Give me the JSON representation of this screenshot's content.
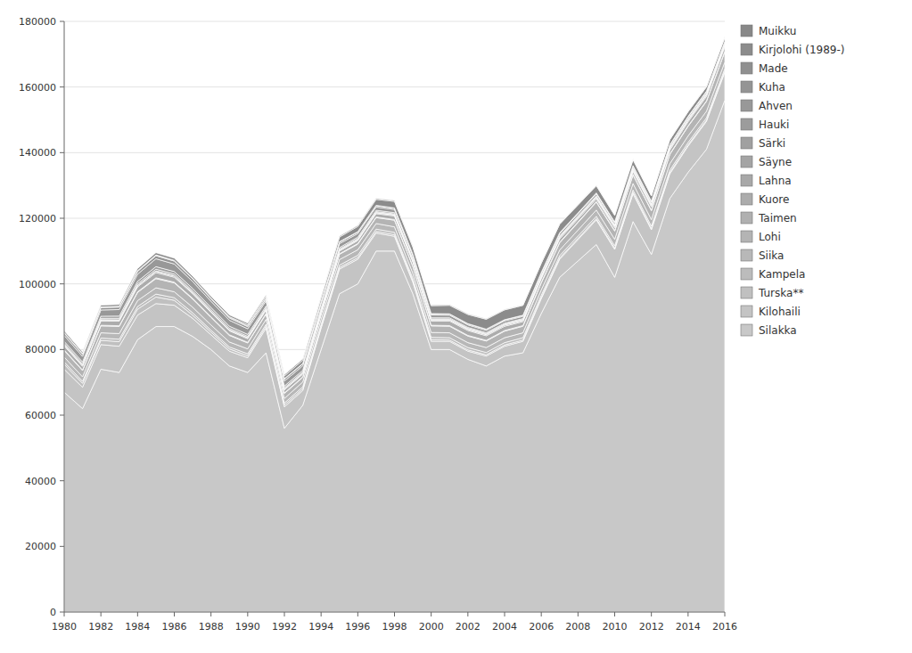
{
  "chart_data": {
    "type": "area",
    "stacked": true,
    "grid": true,
    "legend": "right",
    "x": [
      1980,
      1981,
      1982,
      1983,
      1984,
      1985,
      1986,
      1987,
      1988,
      1989,
      1990,
      1991,
      1992,
      1993,
      1994,
      1995,
      1996,
      1997,
      1998,
      1999,
      2000,
      2001,
      2002,
      2003,
      2004,
      2005,
      2006,
      2007,
      2008,
      2009,
      2010,
      2011,
      2012,
      2013,
      2014,
      2015,
      2016
    ],
    "xlim": [
      1980,
      2016
    ],
    "xticks": [
      1980,
      1982,
      1984,
      1986,
      1988,
      1990,
      1992,
      1994,
      1996,
      1998,
      2000,
      2002,
      2004,
      2006,
      2008,
      2010,
      2012,
      2014,
      2016
    ],
    "ylim": [
      0,
      180000
    ],
    "yticks": [
      0,
      20000,
      40000,
      60000,
      80000,
      100000,
      120000,
      140000,
      160000,
      180000
    ],
    "series": [
      {
        "name": "Silakka",
        "color": "#c8c8c8",
        "values": [
          67000,
          62000,
          74000,
          73000,
          83000,
          87000,
          87000,
          84000,
          80000,
          75000,
          73000,
          79000,
          56000,
          63000,
          80000,
          97000,
          100000,
          110000,
          110000,
          97000,
          80000,
          80000,
          77000,
          75000,
          78000,
          79000,
          91000,
          102000,
          107000,
          112000,
          102000,
          119000,
          109000,
          126000,
          134000,
          141000,
          156000
        ]
      },
      {
        "name": "Kilohaili",
        "color": "#c4c4c4",
        "values": [
          7000,
          6500,
          7500,
          8000,
          7500,
          7000,
          6500,
          5500,
          4500,
          4500,
          4500,
          7500,
          6500,
          4500,
          6500,
          7500,
          7500,
          5500,
          4500,
          3500,
          2500,
          2500,
          2500,
          3000,
          3000,
          3500,
          4500,
          5500,
          6500,
          7500,
          8500,
          8500,
          7500,
          7500,
          8000,
          8500,
          8500
        ]
      },
      {
        "name": "Turska**",
        "color": "#c0c0c0",
        "values": [
          1500,
          1200,
          1300,
          1400,
          1800,
          2000,
          1500,
          1000,
          800,
          700,
          600,
          600,
          600,
          500,
          500,
          500,
          500,
          500,
          500,
          500,
          500,
          400,
          400,
          400,
          400,
          400,
          400,
          400,
          400,
          400,
          400,
          400,
          400,
          400,
          400,
          400,
          400
        ]
      },
      {
        "name": "Kampela",
        "color": "#bcbcbc",
        "values": [
          700,
          600,
          700,
          750,
          800,
          900,
          800,
          700,
          600,
          600,
          600,
          600,
          600,
          600,
          600,
          700,
          700,
          700,
          700,
          700,
          700,
          700,
          700,
          700,
          700,
          700,
          700,
          700,
          700,
          700,
          700,
          700,
          700,
          700,
          700,
          700,
          700
        ]
      },
      {
        "name": "Siika",
        "color": "#b8b8b8",
        "values": [
          1500,
          1400,
          1600,
          1700,
          1800,
          1900,
          1800,
          1700,
          1600,
          1500,
          1500,
          1500,
          1400,
          1500,
          1600,
          1700,
          1700,
          1700,
          1700,
          1600,
          1500,
          1500,
          1500,
          1500,
          1500,
          1500,
          1600,
          1700,
          1800,
          1900,
          2000,
          2000,
          2000,
          2000,
          2000,
          2000,
          2000
        ]
      },
      {
        "name": "Lohi",
        "color": "#b4b4b4",
        "values": [
          2000,
          1900,
          2100,
          2200,
          2500,
          2800,
          2700,
          2500,
          2300,
          2000,
          1800,
          1600,
          1500,
          1400,
          1500,
          1600,
          1700,
          1800,
          2000,
          2000,
          2000,
          2000,
          2000,
          2000,
          2000,
          2000,
          2100,
          2200,
          2300,
          2400,
          2500,
          2600,
          2700,
          2800,
          2900,
          3000,
          3100
        ]
      },
      {
        "name": "Taimen",
        "color": "#b0b0b0",
        "values": [
          200,
          180,
          200,
          200,
          200,
          250,
          230,
          200,
          200,
          200,
          200,
          200,
          200,
          200,
          200,
          200,
          200,
          200,
          200,
          200,
          200,
          200,
          200,
          200,
          200,
          200,
          200,
          200,
          200,
          200,
          200,
          200,
          200,
          200,
          200,
          200,
          200
        ]
      },
      {
        "name": "Kuore",
        "color": "#acacac",
        "values": [
          1200,
          1100,
          1300,
          1400,
          1500,
          1600,
          1500,
          1400,
          1300,
          1200,
          1100,
          1000,
          900,
          800,
          700,
          800,
          900,
          1000,
          1100,
          1200,
          1300,
          1400,
          1500,
          1400,
          1300,
          1200,
          1100,
          1000,
          900,
          800,
          800,
          900,
          1000,
          1100,
          1200,
          1300,
          1400
        ]
      },
      {
        "name": "Lahna",
        "color": "#a8a8a8",
        "values": [
          300,
          280,
          300,
          320,
          350,
          380,
          360,
          340,
          320,
          300,
          280,
          270,
          260,
          250,
          250,
          260,
          270,
          280,
          290,
          300,
          310,
          320,
          330,
          340,
          350,
          360,
          370,
          380,
          390,
          400,
          410,
          420,
          430,
          440,
          450,
          460,
          470
        ]
      },
      {
        "name": "Säyne",
        "color": "#a4a4a4",
        "values": [
          100,
          90,
          100,
          110,
          120,
          130,
          120,
          110,
          100,
          90,
          80,
          75,
          70,
          70,
          70,
          75,
          80,
          85,
          90,
          95,
          100,
          105,
          110,
          115,
          120,
          125,
          130,
          135,
          140,
          145,
          150,
          155,
          160,
          165,
          170,
          175,
          180
        ]
      },
      {
        "name": "Särki",
        "color": "#a0a0a0",
        "values": [
          400,
          380,
          420,
          440,
          480,
          520,
          500,
          470,
          440,
          410,
          380,
          360,
          340,
          320,
          300,
          280,
          270,
          260,
          250,
          240,
          230,
          220,
          210,
          200,
          190,
          185,
          180,
          175,
          170,
          165,
          160,
          155,
          150,
          145,
          140,
          135,
          130
        ]
      },
      {
        "name": "Hauki",
        "color": "#9c9c9c",
        "values": [
          600,
          570,
          630,
          660,
          720,
          780,
          750,
          700,
          660,
          620,
          580,
          550,
          520,
          490,
          460,
          440,
          420,
          400,
          380,
          360,
          340,
          320,
          300,
          290,
          280,
          270,
          260,
          250,
          240,
          230,
          220,
          210,
          200,
          190,
          180,
          175,
          170
        ]
      },
      {
        "name": "Ahven",
        "color": "#989898",
        "values": [
          1800,
          1700,
          1900,
          2000,
          2200,
          2400,
          2300,
          2100,
          1900,
          1800,
          1700,
          1600,
          1500,
          1400,
          1300,
          1200,
          1100,
          1000,
          950,
          900,
          850,
          800,
          750,
          700,
          680,
          660,
          640,
          620,
          600,
          580,
          560,
          540,
          520,
          500,
          480,
          460,
          440
        ]
      },
      {
        "name": "Kuha",
        "color": "#949494",
        "values": [
          700,
          650,
          720,
          760,
          840,
          920,
          880,
          810,
          750,
          700,
          650,
          610,
          580,
          540,
          500,
          470,
          440,
          410,
          380,
          360,
          340,
          320,
          310,
          300,
          290,
          280,
          270,
          260,
          250,
          240,
          230,
          220,
          210,
          200,
          190,
          185,
          180
        ]
      },
      {
        "name": "Made",
        "color": "#909090",
        "values": [
          200,
          190,
          210,
          220,
          240,
          260,
          250,
          230,
          210,
          200,
          190,
          180,
          170,
          160,
          150,
          140,
          130,
          120,
          110,
          100,
          95,
          90,
          85,
          80,
          75,
          70,
          68,
          66,
          64,
          62,
          60,
          58,
          56,
          54,
          52,
          50,
          48
        ]
      },
      {
        "name": "Kirjolohi (1989-)",
        "color": "#8c8c8c",
        "values": [
          0,
          0,
          0,
          0,
          0,
          0,
          0,
          0,
          0,
          200,
          400,
          600,
          800,
          1000,
          1200,
          1400,
          1600,
          1800,
          2000,
          2200,
          2400,
          2600,
          2800,
          3000,
          3000,
          3000,
          2800,
          2600,
          2400,
          2200,
          2000,
          1800,
          1600,
          1500,
          1400,
          1300,
          1200
        ]
      },
      {
        "name": "Muikku",
        "color": "#888888",
        "values": [
          500,
          480,
          530,
          560,
          610,
          660,
          630,
          580,
          540,
          500,
          470,
          440,
          410,
          380,
          350,
          320,
          300,
          280,
          260,
          240,
          220,
          200,
          185,
          170,
          160,
          155,
          150,
          145,
          140,
          135,
          130,
          125,
          120,
          115,
          110,
          108,
          105
        ]
      }
    ]
  }
}
